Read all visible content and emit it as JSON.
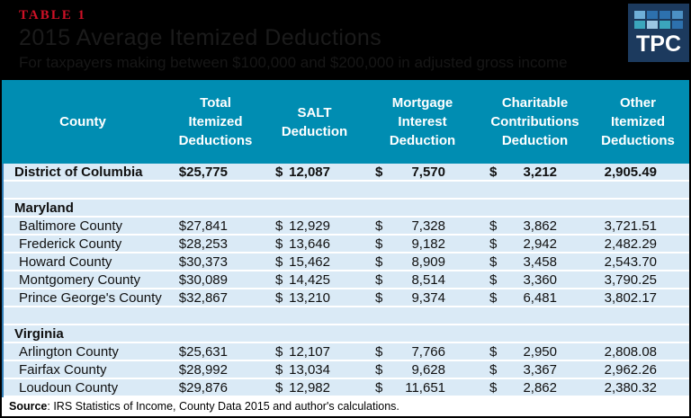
{
  "header": {
    "table_label": "TABLE 1",
    "title": "2015 Average Itemized Deductions",
    "subtitle": "For taxpayers making between $100,000 and $200,000 in adjusted gross income",
    "logo": {
      "text": "TPC",
      "background": "#1C3A5E",
      "squares": [
        "#6FAFD8",
        "#2D71AE",
        "#2D71AE",
        "#4C90C4",
        "#3BA6BC",
        "#9CC6E2",
        "#3BA6BC",
        "#2D71AE"
      ]
    }
  },
  "colors": {
    "accent_red": "#CE1126",
    "header_teal": "#008DB2",
    "body_blue": "#DAEAF6",
    "left_accent_blue": "#2F7CB5",
    "separator_white": "#FFFFFF",
    "title_gray": "#1B1B1B"
  },
  "table": {
    "currency_symbol": "$",
    "columns": [
      "County",
      "Total Itemized Deductions",
      "SALT Deduction",
      "Mortgage Interest Deduction",
      "Charitable Contributions Deduction",
      "Other Itemized Deductions"
    ],
    "rows": [
      {
        "type": "data",
        "bold": true,
        "county": "District of Columbia",
        "total": "$25,775",
        "salt": "12,087",
        "mortgage": "7,570",
        "charitable": "3,212",
        "other": "2,905.49"
      },
      {
        "type": "spacer"
      },
      {
        "type": "section",
        "county": "Maryland"
      },
      {
        "type": "data",
        "county": "Baltimore County",
        "total": "$27,841",
        "salt": "12,929",
        "mortgage": "7,328",
        "charitable": "3,862",
        "other": "3,721.51"
      },
      {
        "type": "data",
        "county": "Frederick County",
        "total": "$28,253",
        "salt": "13,646",
        "mortgage": "9,182",
        "charitable": "2,942",
        "other": "2,482.29"
      },
      {
        "type": "data",
        "county": "Howard County",
        "total": "$30,373",
        "salt": "15,462",
        "mortgage": "8,909",
        "charitable": "3,458",
        "other": "2,543.70"
      },
      {
        "type": "data",
        "county": "Montgomery County",
        "total": "$30,089",
        "salt": "14,425",
        "mortgage": "8,514",
        "charitable": "3,360",
        "other": "3,790.25"
      },
      {
        "type": "data",
        "county": "Prince George's County",
        "total": "$32,867",
        "salt": "13,210",
        "mortgage": "9,374",
        "charitable": "6,481",
        "other": "3,802.17"
      },
      {
        "type": "spacer"
      },
      {
        "type": "section",
        "county": "Virginia"
      },
      {
        "type": "data",
        "county": "Arlington County",
        "total": "$25,631",
        "salt": "12,107",
        "mortgage": "7,766",
        "charitable": "2,950",
        "other": "2,808.08"
      },
      {
        "type": "data",
        "county": "Fairfax County",
        "total": "$28,992",
        "salt": "13,034",
        "mortgage": "9,628",
        "charitable": "3,367",
        "other": "2,962.26"
      },
      {
        "type": "data",
        "county": "Loudoun County",
        "total": "$29,876",
        "salt": "12,982",
        "mortgage": "11,651",
        "charitable": "2,862",
        "other": "2,380.32"
      }
    ]
  },
  "footer": {
    "source_label": "Source",
    "source_text": ": IRS Statistics of Income, County Data 2015 and author's calculations."
  },
  "chart_data": {
    "type": "table",
    "title": "2015 Average Itemized Deductions",
    "subtitle": "For taxpayers making between $100,000 and $200,000 in adjusted gross income",
    "columns": [
      "County",
      "Total Itemized Deductions",
      "SALT Deduction",
      "Mortgage Interest Deduction",
      "Charitable Contributions Deduction",
      "Other Itemized Deductions"
    ],
    "rows": [
      {
        "region": "District of Columbia",
        "county": "District of Columbia",
        "total_itemized": 25775,
        "salt": 12087,
        "mortgage_interest": 7570,
        "charitable": 3212,
        "other_itemized": 2905.49
      },
      {
        "region": "Maryland",
        "county": "Baltimore County",
        "total_itemized": 27841,
        "salt": 12929,
        "mortgage_interest": 7328,
        "charitable": 3862,
        "other_itemized": 3721.51
      },
      {
        "region": "Maryland",
        "county": "Frederick County",
        "total_itemized": 28253,
        "salt": 13646,
        "mortgage_interest": 9182,
        "charitable": 2942,
        "other_itemized": 2482.29
      },
      {
        "region": "Maryland",
        "county": "Howard County",
        "total_itemized": 30373,
        "salt": 15462,
        "mortgage_interest": 8909,
        "charitable": 3458,
        "other_itemized": 2543.7
      },
      {
        "region": "Maryland",
        "county": "Montgomery County",
        "total_itemized": 30089,
        "salt": 14425,
        "mortgage_interest": 8514,
        "charitable": 3360,
        "other_itemized": 3790.25
      },
      {
        "region": "Maryland",
        "county": "Prince George's County",
        "total_itemized": 32867,
        "salt": 13210,
        "mortgage_interest": 9374,
        "charitable": 6481,
        "other_itemized": 3802.17
      },
      {
        "region": "Virginia",
        "county": "Arlington County",
        "total_itemized": 25631,
        "salt": 12107,
        "mortgage_interest": 7766,
        "charitable": 2950,
        "other_itemized": 2808.08
      },
      {
        "region": "Virginia",
        "county": "Fairfax County",
        "total_itemized": 28992,
        "salt": 13034,
        "mortgage_interest": 9628,
        "charitable": 3367,
        "other_itemized": 2962.26
      },
      {
        "region": "Virginia",
        "county": "Loudoun County",
        "total_itemized": 29876,
        "salt": 12982,
        "mortgage_interest": 11651,
        "charitable": 2862,
        "other_itemized": 2380.32
      }
    ],
    "source": "IRS Statistics of Income, County Data 2015 and author's calculations."
  }
}
